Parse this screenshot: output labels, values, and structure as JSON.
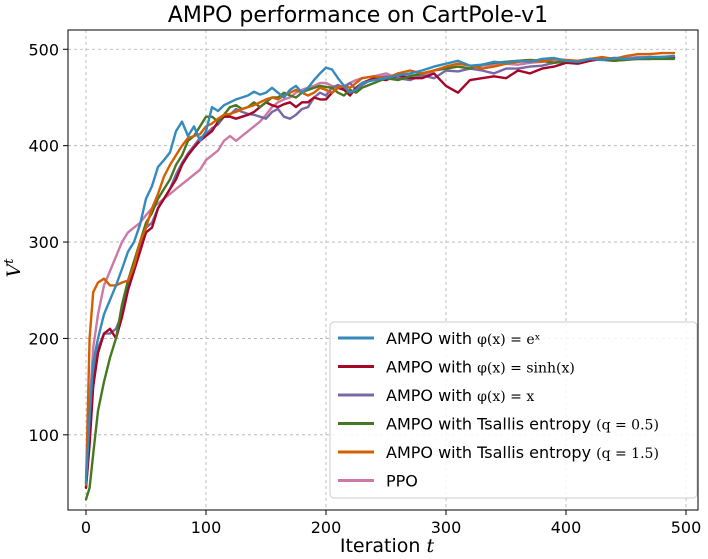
{
  "chart_data": {
    "type": "line",
    "title": "AMPO performance on CartPole-v1",
    "xlabel": {
      "text": "Iteration ",
      "math": "t"
    },
    "ylabel": {
      "base": "V",
      "sup": "t"
    },
    "xlim": [
      -15,
      510
    ],
    "ylim": [
      22,
      520
    ],
    "xticks": [
      0,
      100,
      200,
      300,
      400,
      500
    ],
    "yticks": [
      100,
      200,
      300,
      400,
      500
    ],
    "xtick_labels": [
      "0",
      "100",
      "200",
      "300",
      "400",
      "500"
    ],
    "ytick_labels": [
      "100",
      "200",
      "300",
      "400",
      "500"
    ],
    "grid": true,
    "legend_position": "bottom-right",
    "series": [
      {
        "name": "AMPO with φ(x)=e^x",
        "label_text": "AMPO with ",
        "label_math": "φ(x) = eˣ",
        "color": "#348abd",
        "x": [
          0,
          3,
          6,
          10,
          15,
          20,
          25,
          30,
          35,
          40,
          45,
          50,
          55,
          60,
          65,
          70,
          75,
          80,
          85,
          90,
          95,
          100,
          105,
          110,
          115,
          120,
          125,
          130,
          135,
          140,
          145,
          150,
          155,
          160,
          165,
          170,
          175,
          180,
          185,
          190,
          195,
          200,
          205,
          210,
          215,
          220,
          225,
          230,
          240,
          250,
          260,
          270,
          280,
          290,
          300,
          310,
          320,
          330,
          340,
          350,
          360,
          370,
          380,
          390,
          400,
          410,
          420,
          430,
          440,
          450,
          460,
          470,
          480,
          490
        ],
        "values": [
          50,
          120,
          175,
          200,
          225,
          240,
          255,
          272,
          290,
          300,
          318,
          345,
          358,
          378,
          385,
          393,
          415,
          425,
          410,
          420,
          405,
          415,
          440,
          436,
          442,
          445,
          448,
          450,
          452,
          456,
          453,
          455,
          460,
          455,
          450,
          458,
          462,
          455,
          460,
          468,
          475,
          481,
          479,
          470,
          462,
          455,
          458,
          465,
          468,
          470,
          473,
          475,
          478,
          482,
          485,
          488,
          483,
          484,
          487,
          486,
          488,
          487,
          490,
          491,
          488,
          487,
          490,
          489,
          491,
          490,
          491,
          492,
          492,
          493
        ]
      },
      {
        "name": "AMPO with φ(x)=sinh(x)",
        "label_text": "AMPO with ",
        "label_math": "φ(x) = sinh(x)",
        "color": "#a60628",
        "x": [
          0,
          3,
          6,
          10,
          15,
          20,
          25,
          30,
          35,
          40,
          45,
          50,
          55,
          60,
          65,
          70,
          75,
          80,
          85,
          90,
          95,
          100,
          105,
          110,
          115,
          120,
          125,
          130,
          135,
          140,
          145,
          150,
          155,
          160,
          165,
          170,
          175,
          180,
          185,
          190,
          195,
          200,
          205,
          210,
          215,
          220,
          225,
          230,
          240,
          250,
          260,
          270,
          280,
          290,
          300,
          310,
          320,
          330,
          340,
          350,
          360,
          370,
          380,
          390,
          400,
          410,
          420,
          430,
          440,
          450,
          460,
          470,
          480,
          490
        ],
        "values": [
          45,
          90,
          150,
          185,
          205,
          210,
          200,
          222,
          250,
          270,
          290,
          310,
          315,
          335,
          345,
          355,
          365,
          380,
          390,
          398,
          405,
          410,
          415,
          425,
          430,
          430,
          428,
          430,
          432,
          435,
          440,
          445,
          442,
          440,
          443,
          445,
          440,
          445,
          445,
          450,
          448,
          448,
          455,
          460,
          458,
          452,
          460,
          465,
          470,
          468,
          473,
          470,
          470,
          475,
          462,
          455,
          468,
          470,
          472,
          470,
          478,
          475,
          480,
          482,
          486,
          485,
          488,
          490,
          488,
          490,
          490,
          490,
          491,
          491
        ]
      },
      {
        "name": "AMPO with φ(x)=x",
        "label_text": "AMPO with ",
        "label_math": "φ(x) = x",
        "color": "#7a68a6",
        "x": [
          0,
          3,
          6,
          10,
          15,
          20,
          25,
          30,
          35,
          40,
          45,
          50,
          55,
          60,
          65,
          70,
          75,
          80,
          85,
          90,
          95,
          100,
          105,
          110,
          115,
          120,
          125,
          130,
          135,
          140,
          145,
          150,
          155,
          160,
          165,
          170,
          175,
          180,
          185,
          190,
          195,
          200,
          205,
          210,
          215,
          220,
          225,
          230,
          240,
          250,
          260,
          270,
          280,
          290,
          300,
          310,
          320,
          330,
          340,
          350,
          360,
          370,
          380,
          390,
          400,
          410,
          420,
          430,
          440,
          450,
          460,
          470,
          480,
          490
        ],
        "values": [
          45,
          100,
          165,
          190,
          205,
          205,
          210,
          225,
          255,
          275,
          295,
          315,
          320,
          335,
          345,
          355,
          370,
          382,
          392,
          400,
          408,
          412,
          418,
          422,
          430,
          432,
          438,
          435,
          433,
          432,
          430,
          428,
          435,
          438,
          430,
          428,
          432,
          438,
          440,
          450,
          455,
          452,
          460,
          463,
          460,
          465,
          458,
          463,
          470,
          472,
          470,
          468,
          473,
          470,
          478,
          477,
          480,
          478,
          475,
          480,
          480,
          482,
          483,
          486,
          487,
          488,
          490,
          489,
          488,
          490,
          491,
          491,
          492,
          492
        ]
      },
      {
        "name": "AMPO with Tsallis entropy (q=0.5)",
        "label_text": "AMPO with Tsallis entropy ",
        "label_math": "(q = 0.5)",
        "color": "#467821",
        "x": [
          0,
          3,
          6,
          10,
          15,
          20,
          25,
          30,
          35,
          40,
          45,
          50,
          55,
          60,
          65,
          70,
          75,
          80,
          85,
          90,
          95,
          100,
          105,
          110,
          115,
          120,
          125,
          130,
          135,
          140,
          145,
          150,
          155,
          160,
          165,
          170,
          175,
          180,
          185,
          190,
          195,
          200,
          205,
          210,
          215,
          220,
          225,
          230,
          240,
          250,
          260,
          270,
          280,
          290,
          300,
          310,
          320,
          330,
          340,
          350,
          360,
          370,
          380,
          390,
          400,
          410,
          420,
          430,
          440,
          450,
          460,
          470,
          480,
          490
        ],
        "values": [
          33,
          45,
          80,
          125,
          155,
          180,
          200,
          235,
          260,
          280,
          300,
          320,
          330,
          345,
          355,
          365,
          380,
          390,
          405,
          410,
          420,
          430,
          430,
          425,
          432,
          440,
          442,
          438,
          440,
          445,
          440,
          445,
          450,
          450,
          455,
          452,
          450,
          455,
          458,
          460,
          462,
          461,
          460,
          455,
          452,
          458,
          455,
          460,
          465,
          470,
          468,
          472,
          475,
          478,
          480,
          482,
          480,
          484,
          486,
          487,
          488,
          489,
          488,
          486,
          488,
          487,
          490,
          490,
          488,
          489,
          490,
          490,
          490,
          490
        ]
      },
      {
        "name": "AMPO with Tsallis entropy (q=1.5)",
        "label_text": "AMPO with Tsallis entropy ",
        "label_math": "(q = 1.5)",
        "color": "#d55e00",
        "x": [
          0,
          3,
          6,
          10,
          15,
          20,
          25,
          30,
          35,
          40,
          45,
          50,
          55,
          60,
          65,
          70,
          75,
          80,
          85,
          90,
          95,
          100,
          105,
          110,
          115,
          120,
          125,
          130,
          135,
          140,
          145,
          150,
          155,
          160,
          165,
          170,
          175,
          180,
          185,
          190,
          195,
          200,
          205,
          210,
          215,
          220,
          225,
          230,
          240,
          250,
          260,
          270,
          280,
          290,
          300,
          310,
          320,
          330,
          340,
          350,
          360,
          370,
          380,
          390,
          400,
          410,
          420,
          430,
          440,
          450,
          460,
          470,
          480,
          490
        ],
        "values": [
          48,
          200,
          248,
          258,
          262,
          255,
          255,
          258,
          260,
          275,
          300,
          315,
          335,
          350,
          368,
          380,
          390,
          400,
          408,
          410,
          412,
          420,
          423,
          428,
          432,
          433,
          435,
          438,
          440,
          442,
          445,
          448,
          450,
          448,
          452,
          455,
          458,
          455,
          452,
          455,
          460,
          458,
          455,
          460,
          462,
          460,
          465,
          470,
          472,
          470,
          475,
          478,
          475,
          478,
          482,
          485,
          483,
          480,
          482,
          485,
          487,
          488,
          487,
          490,
          489,
          488,
          490,
          492,
          490,
          493,
          495,
          495,
          496,
          496
        ]
      },
      {
        "name": "PPO",
        "label_text": "PPO",
        "label_math": "",
        "color": "#cc79a7",
        "x": [
          0,
          3,
          6,
          10,
          15,
          20,
          25,
          30,
          35,
          40,
          45,
          50,
          55,
          60,
          65,
          70,
          75,
          80,
          85,
          90,
          95,
          100,
          105,
          110,
          115,
          120,
          125,
          130,
          135,
          140,
          145,
          150,
          155,
          160,
          165,
          170,
          175,
          180,
          185,
          190,
          195,
          200,
          205,
          210,
          215,
          220,
          225,
          230,
          240,
          250,
          260,
          270,
          280,
          290,
          300,
          310,
          320,
          330,
          340,
          350,
          360,
          370,
          380,
          390,
          400,
          410,
          420,
          430,
          440,
          450,
          460,
          470,
          480,
          490
        ],
        "values": [
          55,
          130,
          190,
          225,
          255,
          270,
          285,
          300,
          310,
          315,
          320,
          328,
          335,
          340,
          345,
          350,
          355,
          360,
          365,
          370,
          375,
          385,
          390,
          395,
          405,
          410,
          405,
          410,
          415,
          420,
          425,
          432,
          440,
          445,
          448,
          450,
          455,
          458,
          460,
          462,
          465,
          465,
          462,
          460,
          462,
          465,
          468,
          470,
          472,
          475,
          470,
          473,
          472,
          478,
          480,
          482,
          480,
          483,
          484,
          485,
          484,
          486,
          487,
          488,
          486,
          488,
          489,
          490,
          491,
          491,
          492,
          492,
          491,
          492
        ]
      }
    ]
  }
}
